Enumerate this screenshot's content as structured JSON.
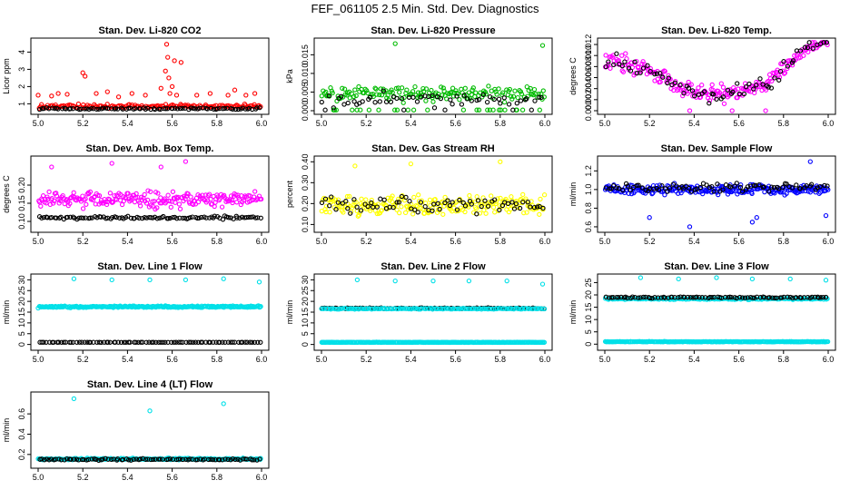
{
  "page_title": "FEF_061105  2.5 Min. Std. Dev. Diagnostics",
  "chart_data": [
    {
      "id": "co2",
      "type": "scatter",
      "title": "Stan. Dev. Li-820 CO2",
      "ylabel": "Licor ppm",
      "xlim": [
        5.0,
        6.0
      ],
      "ylim": [
        0.6,
        4.6
      ],
      "xticks": [
        5.0,
        5.2,
        5.4,
        5.6,
        5.8,
        6.0
      ],
      "yticks": [
        1,
        2,
        3,
        4
      ],
      "series": [
        {
          "name": "primary",
          "color": "#ff0000",
          "base": 0.85,
          "spread": 0.18,
          "n": 150,
          "seed": 11,
          "outliers": [
            [
              5.0,
              1.5
            ],
            [
              5.06,
              1.45
            ],
            [
              5.09,
              1.6
            ],
            [
              5.13,
              1.55
            ],
            [
              5.2,
              2.8
            ],
            [
              5.21,
              2.6
            ],
            [
              5.26,
              1.6
            ],
            [
              5.31,
              1.7
            ],
            [
              5.36,
              1.4
            ],
            [
              5.42,
              1.6
            ],
            [
              5.48,
              1.5
            ],
            [
              5.55,
              1.9
            ],
            [
              5.57,
              2.9
            ],
            [
              5.575,
              4.45
            ],
            [
              5.58,
              3.7
            ],
            [
              5.585,
              2.5
            ],
            [
              5.59,
              1.6
            ],
            [
              5.6,
              2.0
            ],
            [
              5.61,
              3.5
            ],
            [
              5.62,
              1.5
            ],
            [
              5.64,
              3.4
            ],
            [
              5.71,
              1.5
            ],
            [
              5.77,
              1.6
            ],
            [
              5.85,
              1.5
            ],
            [
              5.88,
              1.8
            ],
            [
              5.93,
              1.5
            ],
            [
              5.97,
              1.6
            ]
          ]
        },
        {
          "name": "secondary",
          "color": "#000000",
          "base": 0.72,
          "spread": 0.08,
          "n": 90,
          "seed": 12,
          "outliers": []
        }
      ]
    },
    {
      "id": "pressure",
      "type": "scatter",
      "title": "Stan. Dev. Li-820 Pressure",
      "ylabel": "kPa",
      "xlim": [
        5.0,
        6.0
      ],
      "ylim": [
        0.0,
        0.0185
      ],
      "xticks": [
        5.0,
        5.2,
        5.4,
        5.6,
        5.8,
        6.0
      ],
      "yticks": [
        0.0,
        0.005,
        0.01,
        0.015
      ],
      "ytick_labels": [
        "0.000",
        "0.005",
        "0.010",
        "0.015"
      ],
      "series": [
        {
          "name": "primary",
          "color": "#00bb00",
          "base": 0.0045,
          "spread": 0.0028,
          "n": 190,
          "seed": 21,
          "outliers": [
            [
              5.33,
              0.018
            ],
            [
              5.99,
              0.0175
            ]
          ],
          "floor": 0.0
        },
        {
          "name": "secondary",
          "color": "#000000",
          "base": 0.003,
          "spread": 0.003,
          "n": 60,
          "seed": 22,
          "outliers": [],
          "floor": 0.0
        }
      ]
    },
    {
      "id": "temp",
      "type": "scatter",
      "title": "Stan. Dev. Li-820 Temp.",
      "ylabel": "degrees C",
      "xlim": [
        5.0,
        6.0
      ],
      "ylim": [
        0.0,
        0.0125
      ],
      "xticks": [
        5.0,
        5.2,
        5.4,
        5.6,
        5.8,
        6.0
      ],
      "yticks": [
        0.0,
        0.002,
        0.004,
        0.006,
        0.008,
        0.01,
        0.012
      ],
      "ytick_labels": [
        "0.000",
        "0.002",
        "0.004",
        "0.006",
        "0.008",
        "0.010",
        "0.012"
      ],
      "series": [
        {
          "name": "primary",
          "color": "#ff00ff",
          "base": 0.0065,
          "spread": 0.0022,
          "n": 220,
          "seed": 31,
          "trend": "temp",
          "outliers": [
            [
              5.38,
              0.0
            ],
            [
              5.57,
              0.0
            ],
            [
              5.72,
              0.0
            ]
          ]
        },
        {
          "name": "secondary",
          "color": "#000000",
          "base": 0.0065,
          "spread": 0.002,
          "n": 70,
          "seed": 32,
          "trend": "temp",
          "outliers": []
        }
      ]
    },
    {
      "id": "ambbox",
      "type": "scatter",
      "title": "Stan. Dev. Amb. Box Temp.",
      "ylabel": "degrees C",
      "xlim": [
        5.0,
        6.0
      ],
      "ylim": [
        0.08,
        0.27
      ],
      "xticks": [
        5.0,
        5.2,
        5.4,
        5.6,
        5.8,
        6.0
      ],
      "yticks": [
        0.1,
        0.15,
        0.2
      ],
      "ytick_labels": [
        "0.10",
        "0.15",
        "0.20"
      ],
      "series": [
        {
          "name": "primary",
          "color": "#ff00ff",
          "base": 0.16,
          "spread": 0.03,
          "n": 230,
          "seed": 41,
          "outliers": [
            [
              5.06,
              0.25
            ],
            [
              5.33,
              0.26
            ],
            [
              5.55,
              0.25
            ],
            [
              5.66,
              0.265
            ]
          ]
        },
        {
          "name": "secondary",
          "color": "#000000",
          "base": 0.11,
          "spread": 0.006,
          "n": 100,
          "seed": 42,
          "outliers": []
        }
      ]
    },
    {
      "id": "rh",
      "type": "scatter",
      "title": "Stan. Dev. Gas Stream RH",
      "ylabel": "percent",
      "xlim": [
        5.0,
        6.0
      ],
      "ylim": [
        0.08,
        0.41
      ],
      "xticks": [
        5.0,
        5.2,
        5.4,
        5.6,
        5.8,
        6.0
      ],
      "yticks": [
        0.1,
        0.2,
        0.3,
        0.4
      ],
      "ytick_labels": [
        "0.10",
        "0.20",
        "0.30",
        "0.40"
      ],
      "series": [
        {
          "name": "primary",
          "color": "#ffff00",
          "base": 0.19,
          "spread": 0.065,
          "n": 230,
          "seed": 51,
          "outliers": [
            [
              5.15,
              0.38
            ],
            [
              5.4,
              0.39
            ],
            [
              5.8,
              0.4
            ]
          ]
        },
        {
          "name": "secondary",
          "color": "#000000",
          "base": 0.19,
          "spread": 0.06,
          "n": 70,
          "seed": 52,
          "outliers": []
        }
      ]
    },
    {
      "id": "sampleflow",
      "type": "scatter",
      "title": "Stan. Dev. Sample Flow",
      "ylabel": "ml/min",
      "xlim": [
        5.0,
        6.0
      ],
      "ylim": [
        0.58,
        1.32
      ],
      "xticks": [
        5.0,
        5.2,
        5.4,
        5.6,
        5.8,
        6.0
      ],
      "yticks": [
        0.6,
        0.8,
        1.0,
        1.2
      ],
      "ytick_labels": [
        "0.6",
        "0.8",
        "1.0",
        "1.2"
      ],
      "series": [
        {
          "name": "primary",
          "color": "#0000ff",
          "base": 1.0,
          "spread": 0.08,
          "n": 240,
          "seed": 61,
          "outliers": [
            [
              5.2,
              0.7
            ],
            [
              5.38,
              0.6
            ],
            [
              5.66,
              0.65
            ],
            [
              5.68,
              0.7
            ],
            [
              5.92,
              1.3
            ],
            [
              5.99,
              0.72
            ]
          ]
        },
        {
          "name": "secondary",
          "color": "#000000",
          "base": 1.02,
          "spread": 0.06,
          "n": 80,
          "seed": 62,
          "outliers": []
        }
      ]
    },
    {
      "id": "line1",
      "type": "scatter",
      "title": "Stan. Dev. Line 1 Flow",
      "ylabel": "ml/min",
      "xlim": [
        5.0,
        6.0
      ],
      "ylim": [
        -1,
        31
      ],
      "xticks": [
        5.0,
        5.2,
        5.4,
        5.6,
        5.8,
        6.0
      ],
      "yticks": [
        0,
        5,
        10,
        15,
        20,
        25,
        30
      ],
      "series": [
        {
          "name": "primary",
          "color": "#00e0e8",
          "base": 17.5,
          "spread": 0.6,
          "n": 260,
          "seed": 71,
          "outliers": [
            [
              5.16,
              30.5
            ],
            [
              5.33,
              30.0
            ],
            [
              5.5,
              30.0
            ],
            [
              5.66,
              30.0
            ],
            [
              5.83,
              30.5
            ],
            [
              5.99,
              29.0
            ]
          ]
        },
        {
          "name": "secondary",
          "color": "#000000",
          "base": 1.0,
          "spread": 0.05,
          "n": 90,
          "seed": 72,
          "outliers": []
        }
      ]
    },
    {
      "id": "line2",
      "type": "scatter",
      "title": "Stan. Dev. Line 2 Flow",
      "ylabel": "ml/min",
      "xlim": [
        5.0,
        6.0
      ],
      "ylim": [
        -1,
        31
      ],
      "xticks": [
        5.0,
        5.2,
        5.4,
        5.6,
        5.8,
        6.0
      ],
      "yticks": [
        0,
        5,
        10,
        15,
        20,
        25,
        30
      ],
      "series": [
        {
          "name": "primary",
          "color": "#00e0e8",
          "base": 1.0,
          "spread": 0.15,
          "n": 260,
          "seed": 81,
          "outliers": [
            [
              5.16,
              30.0
            ],
            [
              5.33,
              29.5
            ],
            [
              5.5,
              29.5
            ],
            [
              5.66,
              29.5
            ],
            [
              5.83,
              29.5
            ],
            [
              5.99,
              28.0
            ]
          ]
        },
        {
          "name": "secondary",
          "color": "#000000",
          "base": 16.8,
          "spread": 0.35,
          "n": 90,
          "seed": 82,
          "outliers": []
        },
        {
          "name": "band",
          "color": "#00e0e8",
          "base": 16.6,
          "spread": 0.35,
          "n": 150,
          "seed": 83,
          "outliers": []
        }
      ]
    },
    {
      "id": "line3",
      "type": "scatter",
      "title": "Stan. Dev. Line 3 Flow",
      "ylabel": "ml/min",
      "xlim": [
        5.0,
        6.0
      ],
      "ylim": [
        -1,
        27
      ],
      "xticks": [
        5.0,
        5.2,
        5.4,
        5.6,
        5.8,
        6.0
      ],
      "yticks": [
        0,
        5,
        10,
        15,
        20,
        25
      ],
      "series": [
        {
          "name": "primary",
          "color": "#00e0e8",
          "base": 1.0,
          "spread": 0.15,
          "n": 260,
          "seed": 91,
          "outliers": [
            [
              5.16,
              27.0
            ],
            [
              5.33,
              26.5
            ],
            [
              5.5,
              27.0
            ],
            [
              5.66,
              26.5
            ],
            [
              5.83,
              26.5
            ],
            [
              5.99,
              26.0
            ]
          ]
        },
        {
          "name": "band",
          "color": "#00e0e8",
          "base": 18.4,
          "spread": 0.4,
          "n": 160,
          "seed": 93,
          "outliers": []
        },
        {
          "name": "secondary",
          "color": "#000000",
          "base": 19.0,
          "spread": 0.35,
          "n": 90,
          "seed": 92,
          "outliers": []
        }
      ]
    },
    {
      "id": "line4",
      "type": "scatter",
      "title": "Stan. Dev. Line 4 (LT) Flow",
      "ylabel": "ml/min",
      "xlim": [
        5.0,
        6.0
      ],
      "ylim": [
        0.1,
        0.78
      ],
      "xticks": [
        5.0,
        5.2,
        5.4,
        5.6,
        5.8,
        6.0
      ],
      "yticks": [
        0.2,
        0.4,
        0.6
      ],
      "ytick_labels": [
        "0.2",
        "0.4",
        "0.6"
      ],
      "series": [
        {
          "name": "primary",
          "color": "#00e0e8",
          "base": 0.155,
          "spread": 0.012,
          "n": 260,
          "seed": 101,
          "outliers": [
            [
              5.16,
              0.75
            ],
            [
              5.5,
              0.63
            ],
            [
              5.83,
              0.7
            ]
          ]
        },
        {
          "name": "secondary",
          "color": "#000000",
          "base": 0.15,
          "spread": 0.012,
          "n": 90,
          "seed": 102,
          "outliers": []
        }
      ]
    }
  ]
}
